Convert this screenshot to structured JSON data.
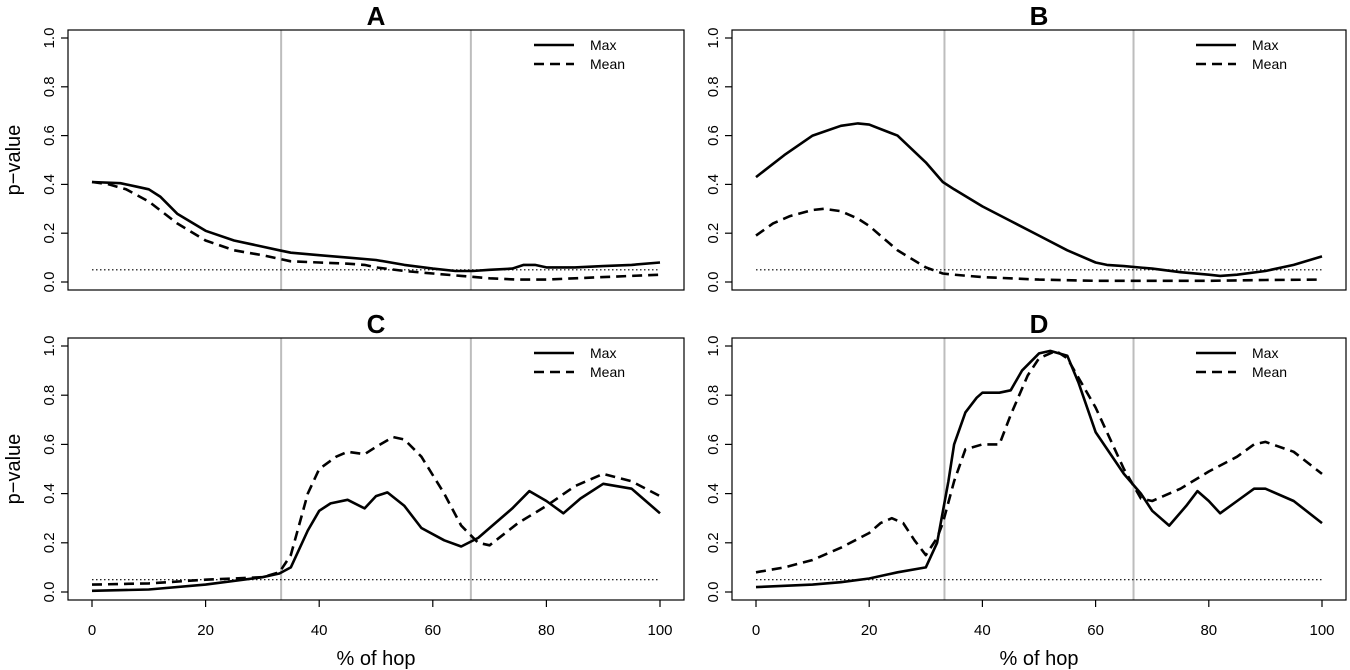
{
  "figure": {
    "line_color": "#000000",
    "region_line_color": "#bdbdbd",
    "reference_line_value": 0.05
  },
  "chart_data": [
    {
      "type": "line",
      "title": "A",
      "xlabel": "",
      "ylabel": "p−value",
      "xlim": [
        0,
        100
      ],
      "ylim": [
        0,
        1
      ],
      "xticks": [
        "0",
        "20",
        "40",
        "60",
        "80",
        "100"
      ],
      "yticks": [
        "0.0",
        "0.2",
        "0.4",
        "0.6",
        "0.8",
        "1.0"
      ],
      "vlines": [
        33.3,
        66.7
      ],
      "hline": 0.05,
      "legend": [
        "Max",
        "Mean"
      ],
      "series": [
        {
          "name": "Max",
          "style": "solid",
          "x": [
            0,
            5,
            8,
            10,
            12,
            15,
            20,
            25,
            30,
            33,
            35,
            40,
            45,
            50,
            55,
            60,
            64,
            67,
            70,
            74,
            76,
            78,
            80,
            85,
            90,
            95,
            100
          ],
          "y": [
            0.41,
            0.405,
            0.39,
            0.38,
            0.35,
            0.28,
            0.21,
            0.17,
            0.145,
            0.13,
            0.12,
            0.11,
            0.1,
            0.09,
            0.07,
            0.055,
            0.045,
            0.045,
            0.05,
            0.055,
            0.07,
            0.07,
            0.06,
            0.06,
            0.065,
            0.07,
            0.08
          ]
        },
        {
          "name": "Mean",
          "style": "dashed",
          "x": [
            0,
            3,
            6,
            10,
            15,
            20,
            25,
            30,
            35,
            40,
            45,
            48,
            50,
            55,
            60,
            65,
            70,
            75,
            80,
            85,
            90,
            95,
            100
          ],
          "y": [
            0.41,
            0.4,
            0.38,
            0.33,
            0.24,
            0.17,
            0.13,
            0.11,
            0.085,
            0.08,
            0.075,
            0.07,
            0.06,
            0.045,
            0.035,
            0.025,
            0.015,
            0.01,
            0.01,
            0.015,
            0.02,
            0.025,
            0.03
          ]
        }
      ]
    },
    {
      "type": "line",
      "title": "B",
      "xlabel": "",
      "ylabel": "",
      "xlim": [
        0,
        100
      ],
      "ylim": [
        0,
        1
      ],
      "xticks": [
        "0",
        "20",
        "40",
        "60",
        "80",
        "100"
      ],
      "yticks": [
        "0.0",
        "0.2",
        "0.4",
        "0.6",
        "0.8",
        "1.0"
      ],
      "vlines": [
        33.3,
        66.7
      ],
      "hline": 0.05,
      "legend": [
        "Max",
        "Mean"
      ],
      "series": [
        {
          "name": "Max",
          "style": "solid",
          "x": [
            0,
            5,
            10,
            15,
            18,
            20,
            25,
            30,
            33,
            35,
            40,
            45,
            50,
            55,
            60,
            62,
            65,
            70,
            75,
            80,
            82,
            85,
            90,
            95,
            100
          ],
          "y": [
            0.43,
            0.52,
            0.6,
            0.64,
            0.65,
            0.645,
            0.6,
            0.49,
            0.41,
            0.38,
            0.31,
            0.25,
            0.19,
            0.13,
            0.08,
            0.07,
            0.065,
            0.055,
            0.04,
            0.03,
            0.025,
            0.03,
            0.045,
            0.07,
            0.105
          ]
        },
        {
          "name": "Mean",
          "style": "dashed",
          "x": [
            0,
            3,
            6,
            10,
            12,
            15,
            18,
            20,
            25,
            30,
            33,
            35,
            40,
            50,
            60,
            70,
            80,
            90,
            100
          ],
          "y": [
            0.19,
            0.24,
            0.27,
            0.295,
            0.3,
            0.29,
            0.26,
            0.23,
            0.13,
            0.06,
            0.035,
            0.03,
            0.02,
            0.01,
            0.005,
            0.005,
            0.005,
            0.008,
            0.01
          ]
        }
      ]
    },
    {
      "type": "line",
      "title": "C",
      "xlabel": "% of hop",
      "ylabel": "p−value",
      "xlim": [
        0,
        100
      ],
      "ylim": [
        0,
        1
      ],
      "xticks": [
        "0",
        "20",
        "40",
        "60",
        "80",
        "100"
      ],
      "yticks": [
        "0.0",
        "0.2",
        "0.4",
        "0.6",
        "0.8",
        "1.0"
      ],
      "vlines": [
        33.3,
        66.7
      ],
      "hline": 0.05,
      "legend": [
        "Max",
        "Mean"
      ],
      "series": [
        {
          "name": "Max",
          "style": "solid",
          "x": [
            0,
            10,
            20,
            30,
            33,
            35,
            38,
            40,
            42,
            45,
            48,
            50,
            52,
            55,
            58,
            62,
            65,
            68,
            70,
            74,
            77,
            80,
            83,
            86,
            90,
            95,
            100
          ],
          "y": [
            0.005,
            0.01,
            0.03,
            0.06,
            0.075,
            0.1,
            0.25,
            0.33,
            0.36,
            0.375,
            0.34,
            0.39,
            0.405,
            0.35,
            0.26,
            0.21,
            0.185,
            0.22,
            0.26,
            0.34,
            0.41,
            0.37,
            0.32,
            0.38,
            0.44,
            0.42,
            0.32
          ]
        },
        {
          "name": "Mean",
          "style": "dashed",
          "x": [
            0,
            10,
            20,
            30,
            33,
            35,
            38,
            40,
            43,
            45,
            48,
            50,
            53,
            55,
            58,
            62,
            65,
            68,
            70,
            75,
            80,
            85,
            90,
            95,
            100
          ],
          "y": [
            0.03,
            0.035,
            0.05,
            0.06,
            0.08,
            0.15,
            0.4,
            0.5,
            0.55,
            0.57,
            0.56,
            0.59,
            0.63,
            0.62,
            0.55,
            0.4,
            0.27,
            0.2,
            0.19,
            0.28,
            0.35,
            0.43,
            0.48,
            0.45,
            0.39
          ]
        }
      ]
    },
    {
      "type": "line",
      "title": "D",
      "xlabel": "% of hop",
      "ylabel": "",
      "xlim": [
        0,
        100
      ],
      "ylim": [
        0,
        1
      ],
      "xticks": [
        "0",
        "20",
        "40",
        "60",
        "80",
        "100"
      ],
      "yticks": [
        "0.0",
        "0.2",
        "0.4",
        "0.6",
        "0.8",
        "1.0"
      ],
      "vlines": [
        33.3,
        66.7
      ],
      "hline": 0.05,
      "legend": [
        "Max",
        "Mean"
      ],
      "series": [
        {
          "name": "Max",
          "style": "solid",
          "x": [
            0,
            10,
            15,
            20,
            25,
            30,
            32,
            34,
            35,
            37,
            39,
            40,
            43,
            45,
            47,
            50,
            52,
            55,
            57,
            60,
            65,
            68,
            70,
            73,
            76,
            78,
            80,
            82,
            85,
            88,
            90,
            95,
            100
          ],
          "y": [
            0.02,
            0.03,
            0.04,
            0.055,
            0.08,
            0.1,
            0.2,
            0.45,
            0.6,
            0.73,
            0.79,
            0.81,
            0.81,
            0.82,
            0.9,
            0.97,
            0.98,
            0.96,
            0.85,
            0.65,
            0.48,
            0.4,
            0.33,
            0.27,
            0.35,
            0.41,
            0.37,
            0.32,
            0.37,
            0.42,
            0.42,
            0.37,
            0.28
          ]
        },
        {
          "name": "Mean",
          "style": "dashed",
          "x": [
            0,
            5,
            10,
            15,
            20,
            22,
            24,
            26,
            28,
            30,
            32,
            33,
            35,
            37,
            40,
            43,
            45,
            48,
            50,
            53,
            55,
            60,
            65,
            68,
            70,
            75,
            80,
            85,
            88,
            90,
            95,
            100
          ],
          "y": [
            0.08,
            0.1,
            0.13,
            0.18,
            0.24,
            0.28,
            0.3,
            0.28,
            0.21,
            0.15,
            0.22,
            0.28,
            0.45,
            0.58,
            0.6,
            0.6,
            0.72,
            0.88,
            0.95,
            0.98,
            0.95,
            0.75,
            0.5,
            0.38,
            0.37,
            0.42,
            0.49,
            0.55,
            0.6,
            0.61,
            0.57,
            0.48
          ]
        }
      ]
    }
  ]
}
